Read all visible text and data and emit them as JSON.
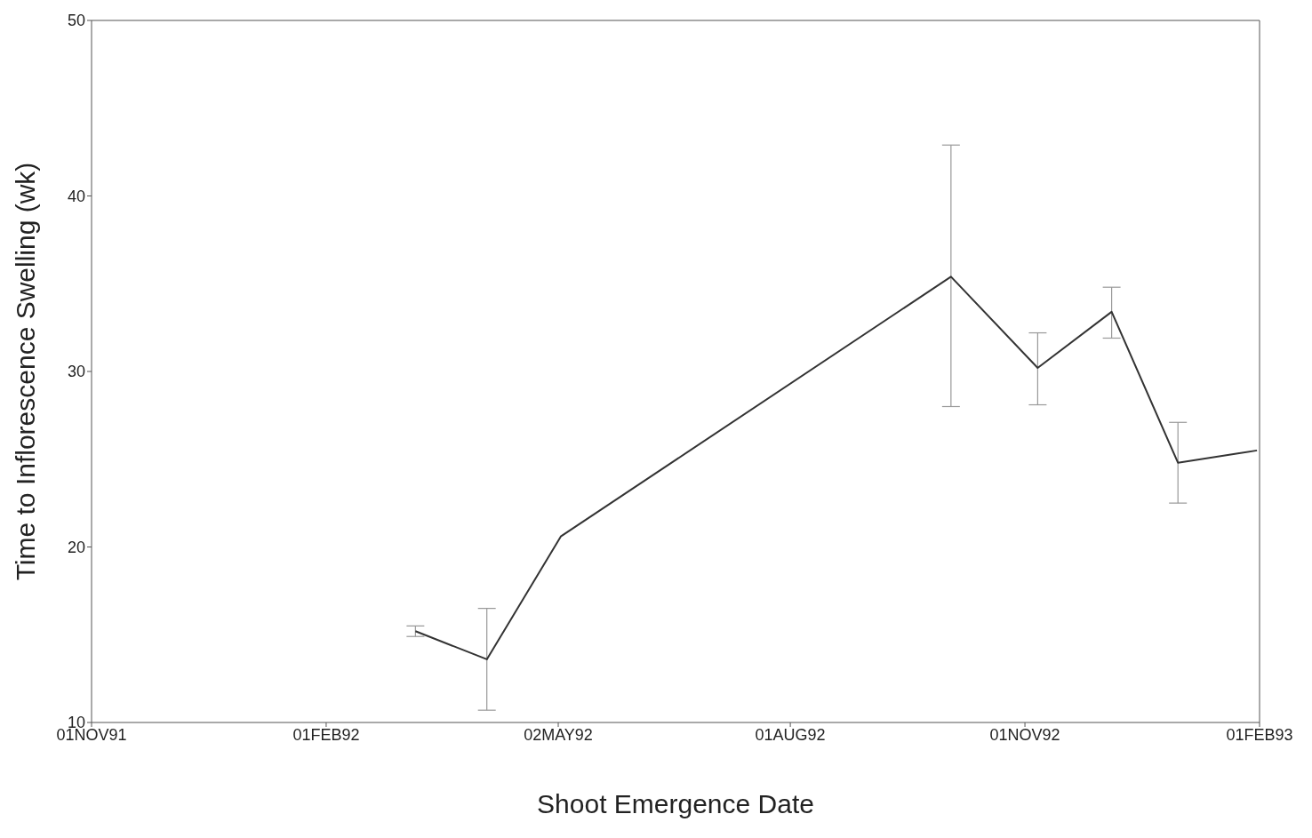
{
  "chart_data": {
    "type": "line",
    "xlabel": "Shoot Emergence Date",
    "ylabel": "Time to Inflorescence Swelling (wk)",
    "x": [
      "1992-03-07",
      "1992-04-04",
      "1992-05-03",
      "1992-10-03",
      "1992-11-06",
      "1992-12-05",
      "1992-12-31",
      "1993-01-31"
    ],
    "values": [
      15.2,
      13.6,
      20.6,
      35.4,
      30.2,
      33.4,
      24.8,
      25.5
    ],
    "errors": [
      [
        14.9,
        15.5
      ],
      [
        10.7,
        16.5
      ],
      null,
      [
        28.0,
        42.9
      ],
      [
        28.1,
        32.2
      ],
      [
        31.9,
        34.8
      ],
      [
        22.5,
        27.1
      ],
      null
    ],
    "color": "#333333",
    "marker": "none",
    "line_style": "solid",
    "grid": false,
    "xlim": [
      "1991-11-01",
      "1993-02-01"
    ],
    "xticks": [
      {
        "value": "1991-11-01",
        "label": "01NOV91"
      },
      {
        "value": "1992-02-01",
        "label": "01FEB92"
      },
      {
        "value": "1992-05-02",
        "label": "02MAY92"
      },
      {
        "value": "1992-08-01",
        "label": "01AUG92"
      },
      {
        "value": "1992-11-01",
        "label": "01NOV92"
      },
      {
        "value": "1993-02-01",
        "label": "01FEB93"
      }
    ],
    "ylim": [
      10,
      50
    ],
    "yticks": [
      10,
      20,
      30,
      40,
      50
    ]
  }
}
